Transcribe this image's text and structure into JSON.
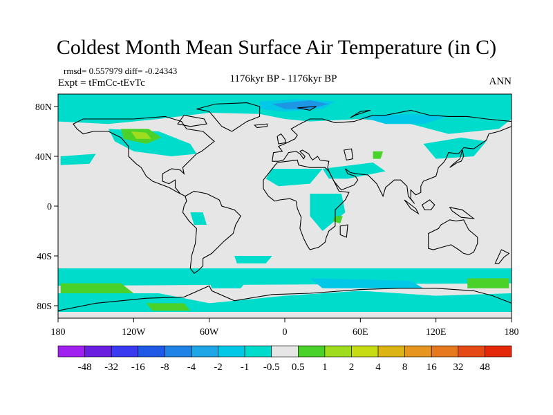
{
  "title": "Coldest Month Mean Surface Air Temperature (in C)",
  "stats_text": "rmsd= 0.557979  diff= -0.24343",
  "expt_text": "Expt = tFmCc-tEvTc",
  "center_label": "1176kyr BP - 1176kyr BP",
  "season_label": "ANN",
  "colors": {
    "neutral": "#e6e6e6",
    "light_cyan": "#00dccb",
    "cyan": "#00c8e6",
    "blue": "#1e96e6",
    "light_green": "#4ad22a",
    "green": "#9fdc1e",
    "coast": "#000000"
  },
  "chart_data": {
    "type": "heatmap",
    "title": "Coldest Month Mean Surface Air Temperature (in C)",
    "x_ticks": [
      "180",
      "120W",
      "60W",
      "0",
      "60E",
      "120E",
      "180"
    ],
    "y_ticks": [
      "80N",
      "40N",
      "0",
      "40S",
      "80S"
    ],
    "xlim": [
      -180,
      180
    ],
    "ylim": [
      -90,
      90
    ],
    "colorbar": {
      "labels": [
        "-48",
        "-32",
        "-16",
        "-8",
        "-4",
        "-2",
        "-1",
        "-0.5",
        "0.5",
        "1",
        "2",
        "4",
        "8",
        "16",
        "32",
        "48"
      ],
      "colors": [
        "#a020f0",
        "#6a1fe0",
        "#3a3af0",
        "#1e5ae6",
        "#1e82e6",
        "#1ea6e6",
        "#00c8e6",
        "#00dccb",
        "#e6e6e6",
        "#4ad22a",
        "#9fdc1e",
        "#c8dc14",
        "#dcb414",
        "#e6961e",
        "#e6781e",
        "#e64a14",
        "#e6280a"
      ]
    }
  }
}
